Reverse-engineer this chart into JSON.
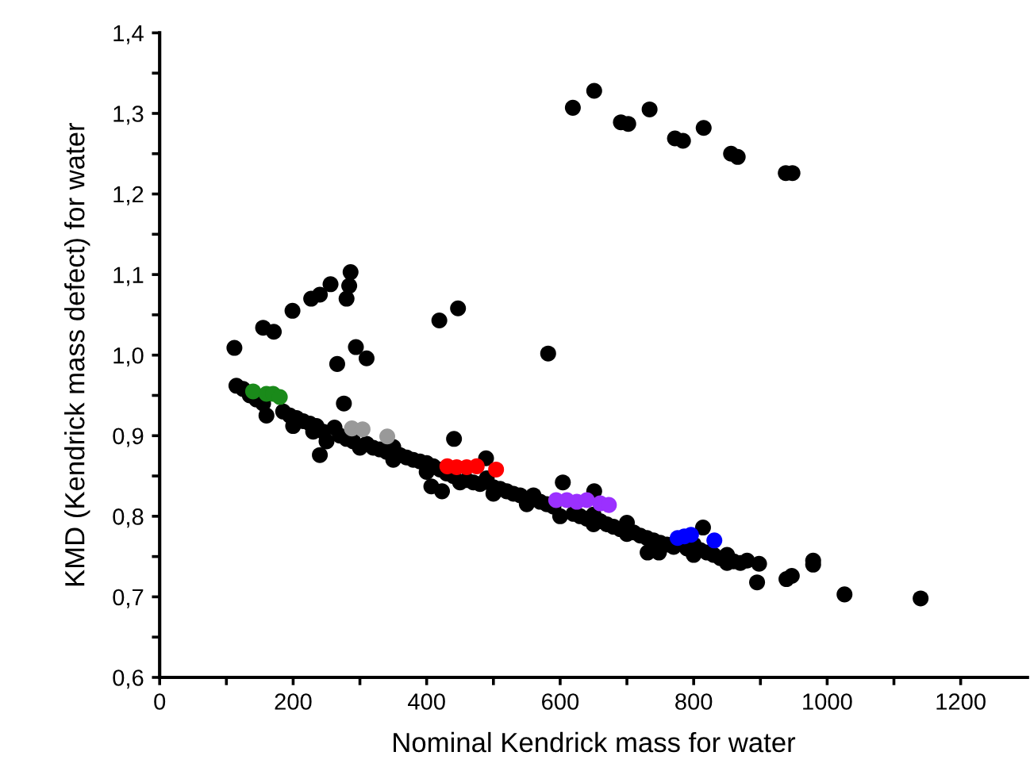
{
  "chart_data": {
    "type": "scatter",
    "xlabel": "Nominal Kendrick mass for water",
    "ylabel": "KMD (Kendrick mass defect) for water",
    "xlim": [
      0,
      1300
    ],
    "ylim": [
      0.6,
      1.4
    ],
    "xticks": [
      0,
      {
        "value": 100,
        "label": null
      },
      200,
      {
        "value": 300,
        "label": null
      },
      400,
      {
        "value": 500,
        "label": null
      },
      600,
      {
        "value": 700,
        "label": null
      },
      800,
      {
        "value": 900,
        "label": null
      },
      1000,
      {
        "value": 1100,
        "label": null
      },
      1200
    ],
    "yticks": [
      {
        "value": 0.6,
        "label": "0,6"
      },
      {
        "value": 0.65,
        "label": null
      },
      {
        "value": 0.7,
        "label": "0,7"
      },
      {
        "value": 0.75,
        "label": null
      },
      {
        "value": 0.8,
        "label": "0,8"
      },
      {
        "value": 0.85,
        "label": null
      },
      {
        "value": 0.9,
        "label": "0,9"
      },
      {
        "value": 0.95,
        "label": null
      },
      {
        "value": 1.0,
        "label": "1,0"
      },
      {
        "value": 1.05,
        "label": null
      },
      {
        "value": 1.1,
        "label": "1,1"
      },
      {
        "value": 1.15,
        "label": null
      },
      {
        "value": 1.2,
        "label": "1,2"
      },
      {
        "value": 1.25,
        "label": null
      },
      {
        "value": 1.3,
        "label": "1,3"
      },
      {
        "value": 1.35,
        "label": null
      },
      {
        "value": 1.4,
        "label": "1,4"
      }
    ],
    "grid": false,
    "legend": false,
    "marker": "circle",
    "series": [
      {
        "color": "#000000",
        "x": [
          112,
          155,
          171,
          199,
          227,
          240,
          256,
          280,
          284,
          286,
          294,
          310,
          266,
          276,
          419,
          447,
          582,
          441,
          240,
          407,
          423,
          489,
          604,
          651,
          895,
          939,
          947,
          979,
          979,
          1026,
          1140,
          814,
          731,
          748,
          898,
          619,
          651,
          691,
          702,
          734,
          772,
          784,
          815,
          856,
          866,
          938,
          948,
          115,
          125,
          135,
          145,
          155,
          185,
          195,
          205,
          215,
          225,
          235,
          245,
          262,
          270,
          280,
          290,
          310,
          320,
          330,
          340,
          350,
          360,
          370,
          380,
          390,
          400,
          410,
          420,
          430,
          440,
          460,
          470,
          480,
          490,
          500,
          510,
          520,
          530,
          540,
          560,
          570,
          580,
          590,
          620,
          630,
          640,
          650,
          660,
          670,
          680,
          690,
          700,
          710,
          720,
          730,
          740,
          750,
          760,
          770,
          790,
          800,
          810,
          820,
          830,
          840,
          850,
          860,
          870,
          880,
          160,
          200,
          230,
          250,
          300,
          350,
          400,
          450,
          500,
          550,
          600,
          650,
          700,
          800,
          850
        ],
        "values": [
          1.009,
          1.034,
          1.029,
          1.055,
          1.07,
          1.075,
          1.088,
          1.07,
          1.086,
          1.103,
          1.01,
          0.996,
          0.989,
          0.94,
          1.043,
          1.058,
          1.002,
          0.896,
          0.876,
          0.837,
          0.831,
          0.872,
          0.842,
          0.831,
          0.718,
          0.722,
          0.726,
          0.745,
          0.74,
          0.703,
          0.698,
          0.786,
          0.755,
          0.755,
          0.741,
          1.307,
          1.328,
          1.289,
          1.287,
          1.305,
          1.269,
          1.266,
          1.282,
          1.25,
          1.246,
          1.226,
          1.226,
          0.962,
          0.958,
          0.95,
          0.945,
          0.94,
          0.93,
          0.925,
          0.922,
          0.918,
          0.915,
          0.912,
          0.905,
          0.91,
          0.9,
          0.896,
          0.893,
          0.89,
          0.885,
          0.883,
          0.88,
          0.886,
          0.876,
          0.873,
          0.87,
          0.868,
          0.866,
          0.862,
          0.858,
          0.853,
          0.85,
          0.845,
          0.842,
          0.84,
          0.847,
          0.836,
          0.834,
          0.831,
          0.828,
          0.826,
          0.826,
          0.818,
          0.815,
          0.812,
          0.803,
          0.8,
          0.797,
          0.802,
          0.794,
          0.79,
          0.787,
          0.784,
          0.792,
          0.78,
          0.776,
          0.773,
          0.77,
          0.767,
          0.765,
          0.762,
          0.76,
          0.765,
          0.758,
          0.755,
          0.752,
          0.748,
          0.752,
          0.744,
          0.742,
          0.745,
          0.925,
          0.912,
          0.905,
          0.893,
          0.885,
          0.87,
          0.855,
          0.842,
          0.828,
          0.815,
          0.8,
          0.79,
          0.778,
          0.752,
          0.742
        ]
      },
      {
        "color": "#1a8a1a",
        "x": [
          140,
          160,
          170,
          180
        ],
        "values": [
          0.955,
          0.952,
          0.952,
          0.948
        ]
      },
      {
        "color": "#999999",
        "x": [
          288,
          304,
          341
        ],
        "values": [
          0.909,
          0.908,
          0.899
        ]
      },
      {
        "color": "#ff0000",
        "x": [
          431,
          445,
          460,
          475,
          504
        ],
        "values": [
          0.862,
          0.861,
          0.861,
          0.862,
          0.858
        ]
      },
      {
        "color": "#9b30ff",
        "x": [
          594,
          610,
          625,
          640,
          660,
          673
        ],
        "values": [
          0.82,
          0.82,
          0.818,
          0.82,
          0.816,
          0.814
        ]
      },
      {
        "color": "#0000ff",
        "x": [
          776,
          786,
          796,
          831
        ],
        "values": [
          0.773,
          0.775,
          0.777,
          0.77
        ]
      }
    ]
  }
}
